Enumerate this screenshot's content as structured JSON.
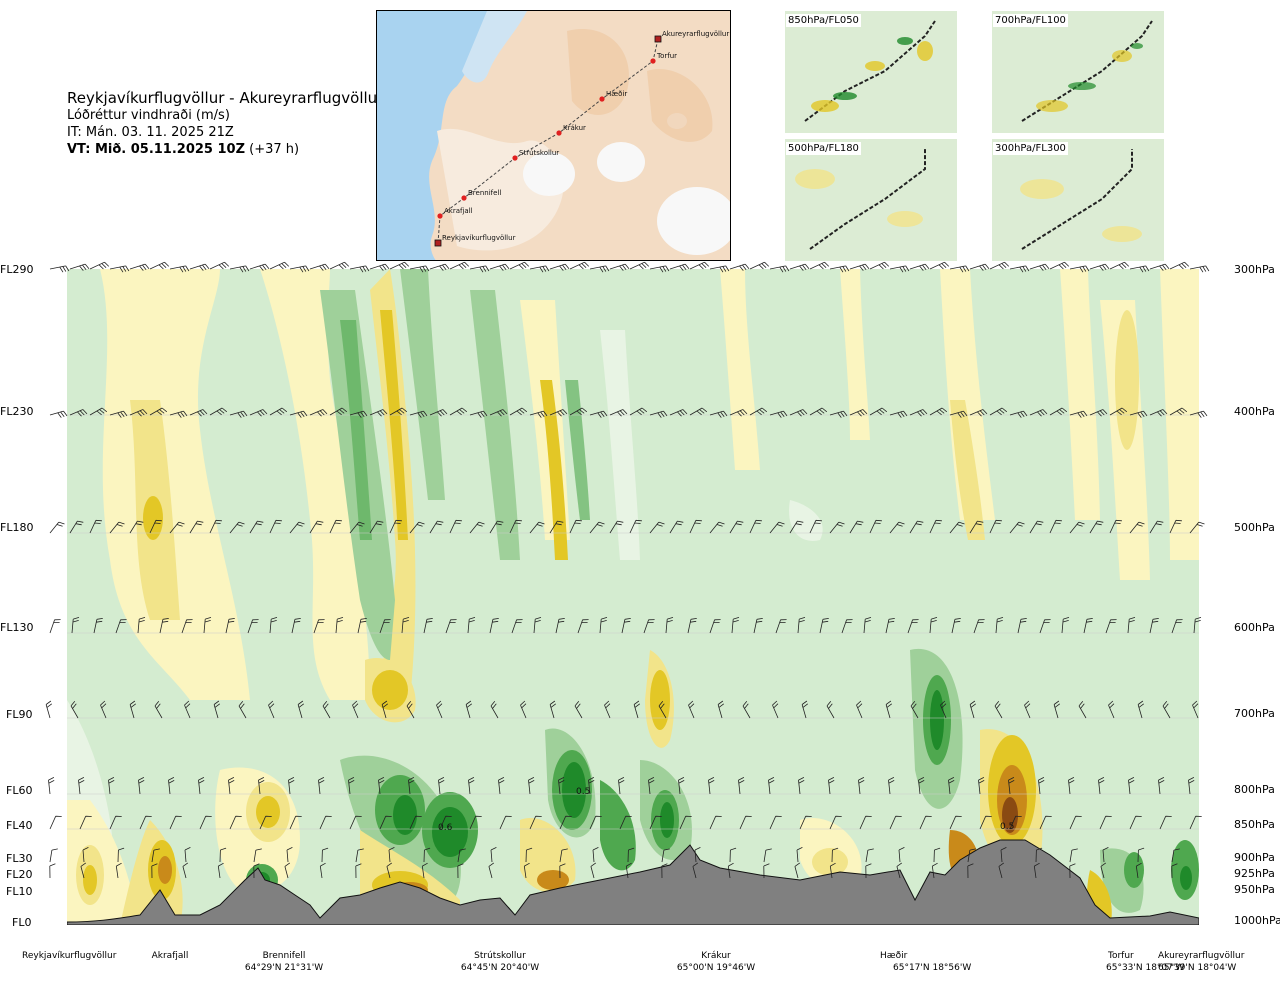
{
  "header": {
    "route": "Reykjavíkurflugvöllur - Akureyrarflugvöllur",
    "quantity": "Lóðréttur vindhraði (m/s)",
    "issue_time": "IT: Mán. 03. 11. 2025 21Z",
    "valid_time_bold": "VT: Mið. 05.11.2025 10Z",
    "valid_time_offset": " (+37 h)"
  },
  "map": {
    "stations": [
      {
        "name": "Akureyrarflugvöllur"
      },
      {
        "name": "Torfur"
      },
      {
        "name": "Hæðir"
      },
      {
        "name": "Krákur"
      },
      {
        "name": "Strútskollur"
      },
      {
        "name": "Brennifell"
      },
      {
        "name": "Akrafjall"
      },
      {
        "name": "Reykjavíkurflugvöllur"
      }
    ]
  },
  "mini_maps": [
    {
      "label": "850hPa/FL050"
    },
    {
      "label": "700hPa/FL100"
    },
    {
      "label": "500hPa/FL180"
    },
    {
      "label": "300hPa/FL300"
    }
  ],
  "chart_data": {
    "type": "heatmap",
    "title": "Reykjavíkurflugvöllur - Akureyrarflugvöllur",
    "quantity": "Lóðréttur vindhraði (m/s)",
    "y_levels": [
      {
        "fl": "FL290",
        "hpa": "300hPa"
      },
      {
        "fl": "FL230",
        "hpa": "400hPa"
      },
      {
        "fl": "FL180",
        "hpa": "500hPa"
      },
      {
        "fl": "FL130",
        "hpa": "600hPa"
      },
      {
        "fl": "FL90",
        "hpa": "700hPa"
      },
      {
        "fl": "FL60",
        "hpa": "800hPa"
      },
      {
        "fl": "FL40",
        "hpa": "850hPa"
      },
      {
        "fl": "FL30",
        "hpa": "900hPa"
      },
      {
        "fl": "FL20",
        "hpa": "925hPa"
      },
      {
        "fl": "FL10",
        "hpa": "950hPa"
      },
      {
        "fl": "FL0",
        "hpa": "1000hPa"
      }
    ],
    "contour_labels": [
      "0.5",
      "0.6",
      "0.5"
    ],
    "x_stations": [
      {
        "name": "Reykjavíkurflugvöllur",
        "coord": ""
      },
      {
        "name": "Akrafjall",
        "coord": ""
      },
      {
        "name": "Brennifell",
        "coord": "64°29'N 21°31'W"
      },
      {
        "name": "Strútskollur",
        "coord": "64°45'N 20°40'W"
      },
      {
        "name": "Krákur",
        "coord": "65°00'N 19°46'W"
      },
      {
        "name": "Hæðir",
        "coord": "65°17'N 18°56'W"
      },
      {
        "name": "Torfur",
        "coord": "65°33'N 18°07'W"
      },
      {
        "name": "Akureyrarflugvöllur",
        "coord": "65°39'N 18°04'W"
      }
    ],
    "colors": {
      "strong_up": "#1f8a2a",
      "up": "#4fa84f",
      "weak_up": "#9fd09a",
      "neutral": "#d4ecd0",
      "weak_down": "#fbf5c0",
      "down": "#f2e48a",
      "strong_down": "#e3c726",
      "very_strong_down": "#c98a1a",
      "extreme_down": "#8a4a12",
      "terrain": "#808080"
    }
  }
}
